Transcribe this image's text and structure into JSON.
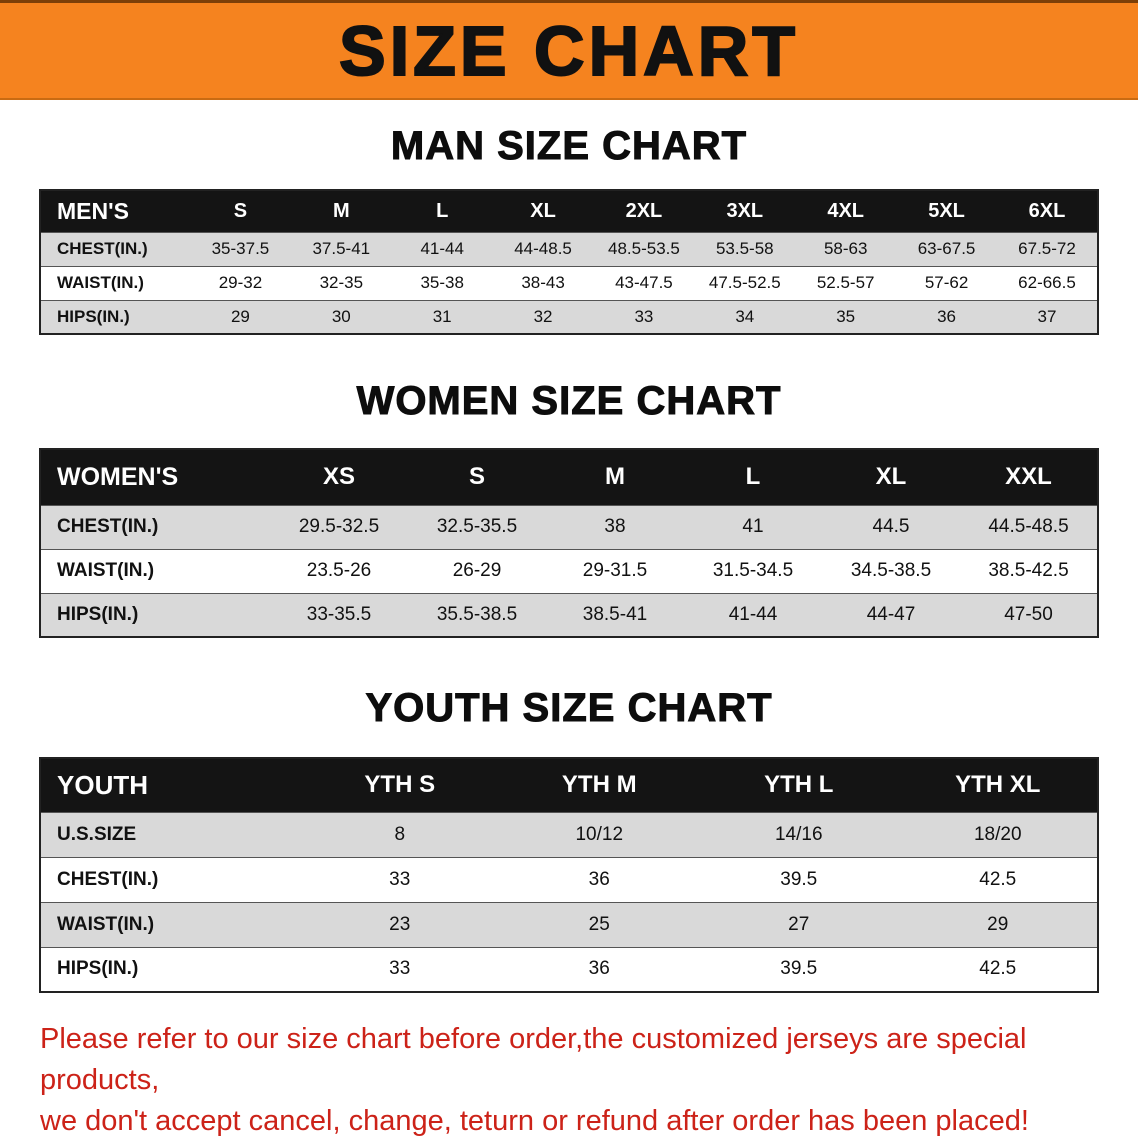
{
  "banner": {
    "title": "SIZE CHART",
    "bg_color": "#f5831f",
    "title_color": "#111111"
  },
  "sections": [
    {
      "id": "men",
      "heading": "MAN SIZE CHART",
      "table": {
        "header": [
          "MEN'S",
          "S",
          "M",
          "L",
          "XL",
          "2XL",
          "3XL",
          "4XL",
          "5XL",
          "6XL"
        ],
        "rows": [
          [
            "CHEST(IN.)",
            "35-37.5",
            "37.5-41",
            "41-44",
            "44-48.5",
            "48.5-53.5",
            "53.5-58",
            "58-63",
            "63-67.5",
            "67.5-72"
          ],
          [
            "WAIST(IN.)",
            "29-32",
            "32-35",
            "35-38",
            "38-43",
            "43-47.5",
            "47.5-52.5",
            "52.5-57",
            "57-62",
            "62-66.5"
          ],
          [
            "HIPS(IN.)",
            "29",
            "30",
            "31",
            "32",
            "33",
            "34",
            "35",
            "36",
            "37"
          ]
        ]
      }
    },
    {
      "id": "women",
      "heading": "WOMEN SIZE CHART",
      "table": {
        "header": [
          "WOMEN'S",
          "XS",
          "S",
          "M",
          "L",
          "XL",
          "XXL"
        ],
        "rows": [
          [
            "CHEST(IN.)",
            "29.5-32.5",
            "32.5-35.5",
            "38",
            "41",
            "44.5",
            "44.5-48.5"
          ],
          [
            "WAIST(IN.)",
            "23.5-26",
            "26-29",
            "29-31.5",
            "31.5-34.5",
            "34.5-38.5",
            "38.5-42.5"
          ],
          [
            "HIPS(IN.)",
            "33-35.5",
            "35.5-38.5",
            "38.5-41",
            "41-44",
            "44-47",
            "47-50"
          ]
        ]
      }
    },
    {
      "id": "youth",
      "heading": "YOUTH SIZE CHART",
      "table": {
        "header": [
          "YOUTH",
          "YTH S",
          "YTH M",
          "YTH L",
          "YTH XL"
        ],
        "rows": [
          [
            "U.S.SIZE",
            "8",
            "10/12",
            "14/16",
            "18/20"
          ],
          [
            "CHEST(IN.)",
            "33",
            "36",
            "39.5",
            "42.5"
          ],
          [
            "WAIST(IN.)",
            "23",
            "25",
            "27",
            "29"
          ],
          [
            "HIPS(IN.)",
            "33",
            "36",
            "39.5",
            "42.5"
          ]
        ]
      }
    }
  ],
  "notice": {
    "color": "#cc2218",
    "lines": [
      "Please refer to our size chart before order,the customized jerseys are special products,",
      "we don't accept cancel, change, teturn or refund after order has been placed!"
    ]
  }
}
